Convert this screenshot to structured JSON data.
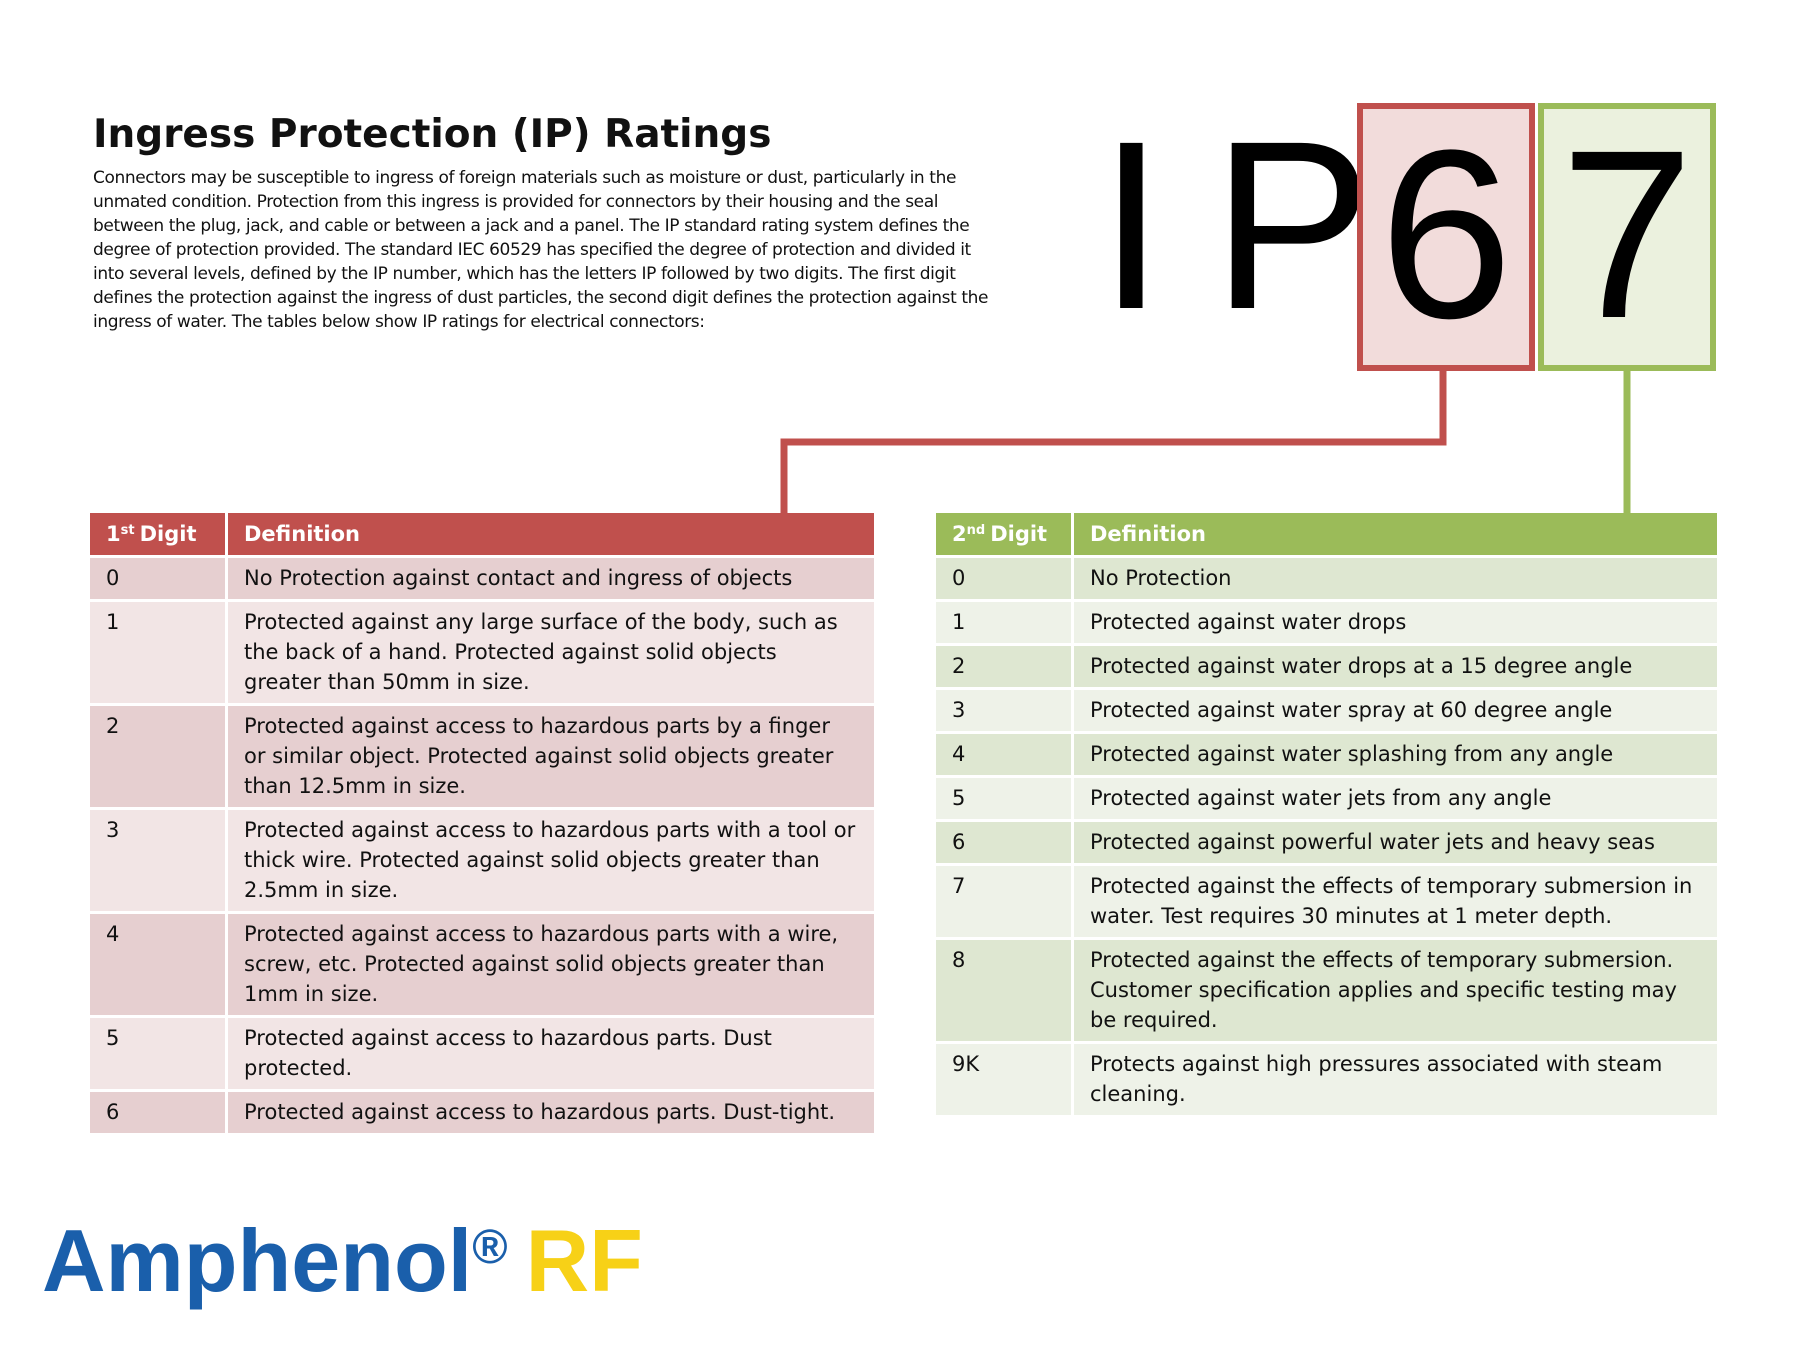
{
  "header": {
    "title": "Ingress Protection (IP) Ratings",
    "intro": "Connectors may be susceptible to ingress of foreign materials such as moisture or dust, particularly in the unmated condition. Protection from this ingress is provided for connectors by their housing and the seal between the plug, jack, and cable or between a jack and a panel. The IP standard rating system defines the degree of protection provided. The standard IEC 60529 has specified the degree of protection and divided it into several levels, defined by the IP number, which has the letters IP followed by two digits. The first digit defines the protection against the ingress of dust particles, the second digit defines the protection against the ingress of water. The tables below show IP ratings for electrical connectors:"
  },
  "code": {
    "letters": [
      "I",
      "P"
    ],
    "first": "6",
    "second": "7"
  },
  "table1": {
    "header": [
      {
        "digit": "1",
        "ordinal": "st",
        "word": "Digit"
      },
      "Definition"
    ],
    "rows": [
      [
        "0",
        "No Protection against contact and ingress of objects"
      ],
      [
        "1",
        "Protected against any large surface of the body, such as the back of a hand. Protected against solid objects greater than 50mm in size."
      ],
      [
        "2",
        "Protected against access to hazardous parts by a finger or similar object. Protected against solid objects greater than 12.5mm in size."
      ],
      [
        "3",
        "Protected against access to hazardous parts with a tool or thick wire. Protected against solid objects greater than 2.5mm in size."
      ],
      [
        "4",
        "Protected against access to hazardous parts with a wire, screw, etc. Protected against solid objects greater than 1mm in size."
      ],
      [
        "5",
        "Protected against access to hazardous parts. Dust protected."
      ],
      [
        "6",
        "Protected against access to hazardous parts. Dust-tight."
      ]
    ]
  },
  "table2": {
    "header": [
      {
        "digit": "2",
        "ordinal": "nd",
        "word": "Digit"
      },
      "Definition"
    ],
    "rows": [
      [
        "0",
        "No Protection"
      ],
      [
        "1",
        "Protected against water drops"
      ],
      [
        "2",
        "Protected against water drops at a 15 degree angle"
      ],
      [
        "3",
        "Protected against water spray at 60 degree angle"
      ],
      [
        "4",
        "Protected against water splashing from any angle"
      ],
      [
        "5",
        "Protected against water jets from any angle"
      ],
      [
        "6",
        "Protected against powerful water jets and heavy seas"
      ],
      [
        "7",
        "Protected against the effects of temporary submersion in water. Test requires 30 minutes at 1 meter depth."
      ],
      [
        "8",
        "Protected against the effects of temporary submersion. Customer specification applies and specific testing may be required."
      ],
      [
        "9K",
        "Protects against high pressures associated with steam cleaning."
      ]
    ]
  },
  "logo": {
    "brand": "Amphenol",
    "mark": "®",
    "product": "RF"
  }
}
